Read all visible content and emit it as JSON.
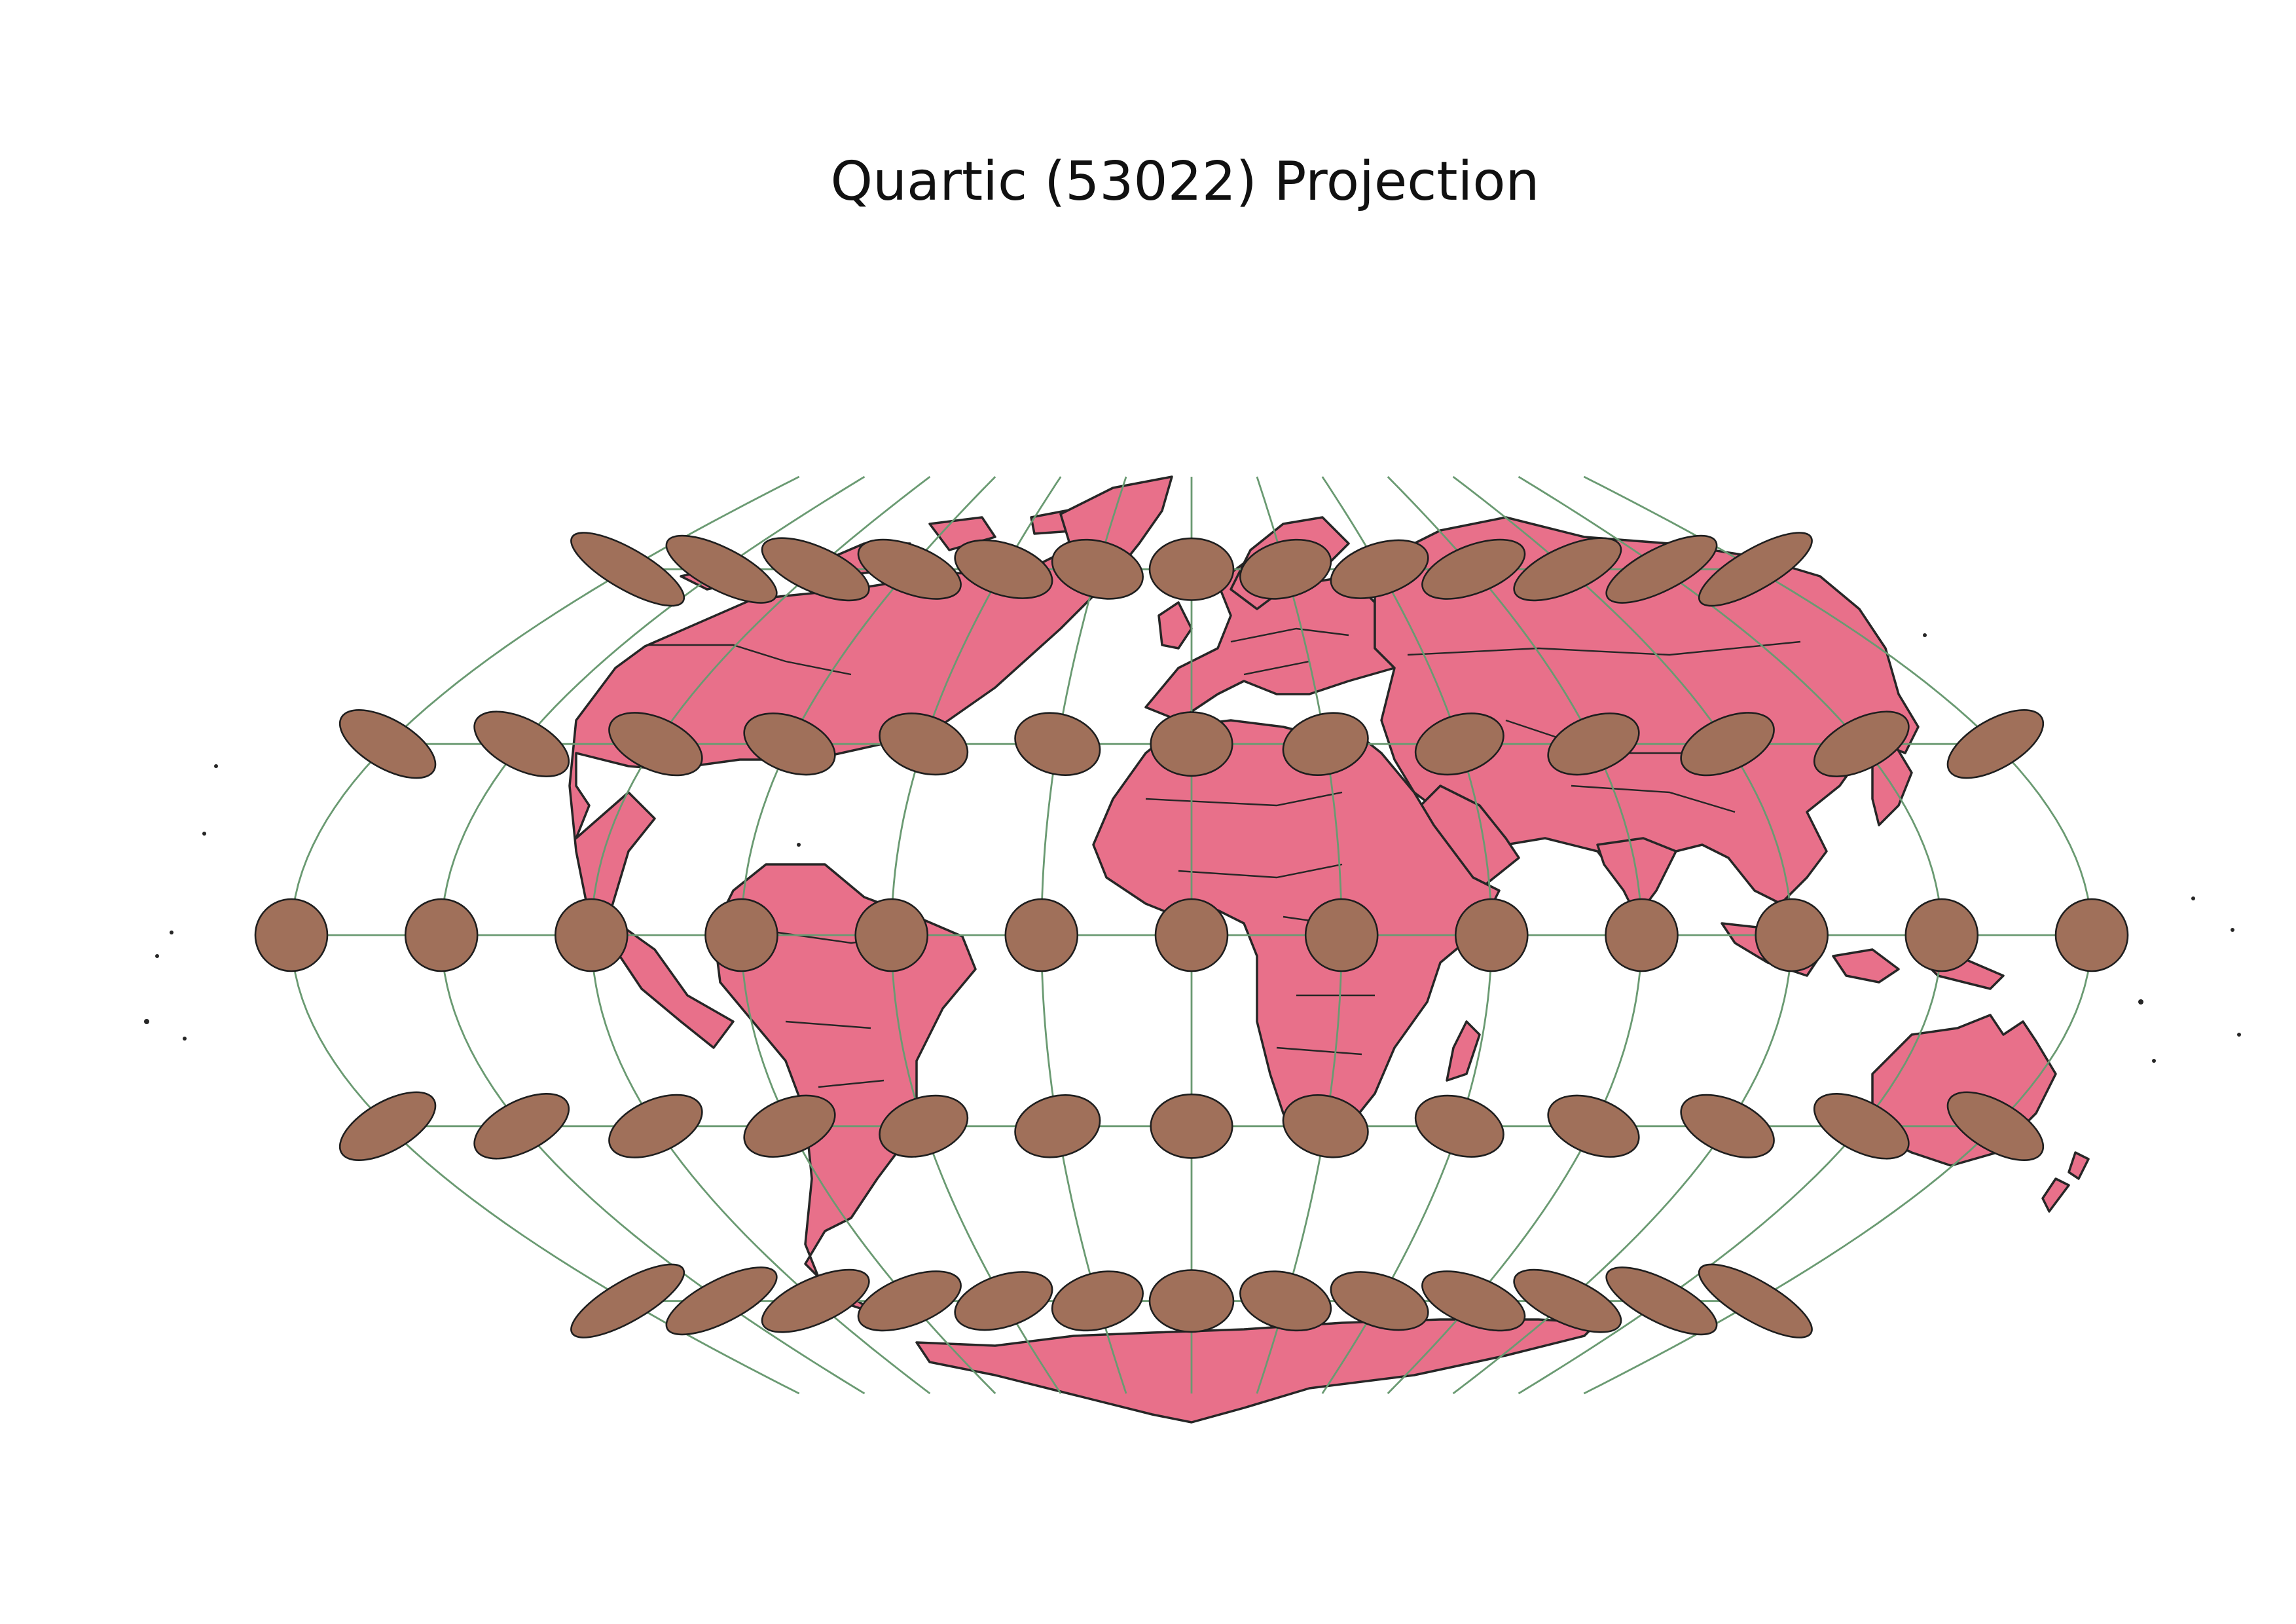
{
  "title": "Quartic (53022) Projection",
  "colors": {
    "land": "#e8708a",
    "coastline": "#262626",
    "graticule": "#6a9a72",
    "indicatrix": "#a0705a",
    "background": "#ffffff"
  },
  "map": {
    "projection": "Quartic (53022)",
    "graticule_longitudes_deg": [
      -150,
      -120,
      -90,
      -60,
      -30,
      0,
      30,
      60,
      90,
      120,
      150
    ],
    "graticule_latitudes_deg": [
      -60,
      -30,
      0,
      30,
      60
    ],
    "tissot_indicatrix": {
      "longitudes_deg": [
        -180,
        -150,
        -120,
        -90,
        -60,
        -30,
        0,
        30,
        60,
        90,
        120,
        150,
        180
      ],
      "latitudes_deg": [
        -60,
        -30,
        0,
        30,
        60
      ]
    }
  }
}
